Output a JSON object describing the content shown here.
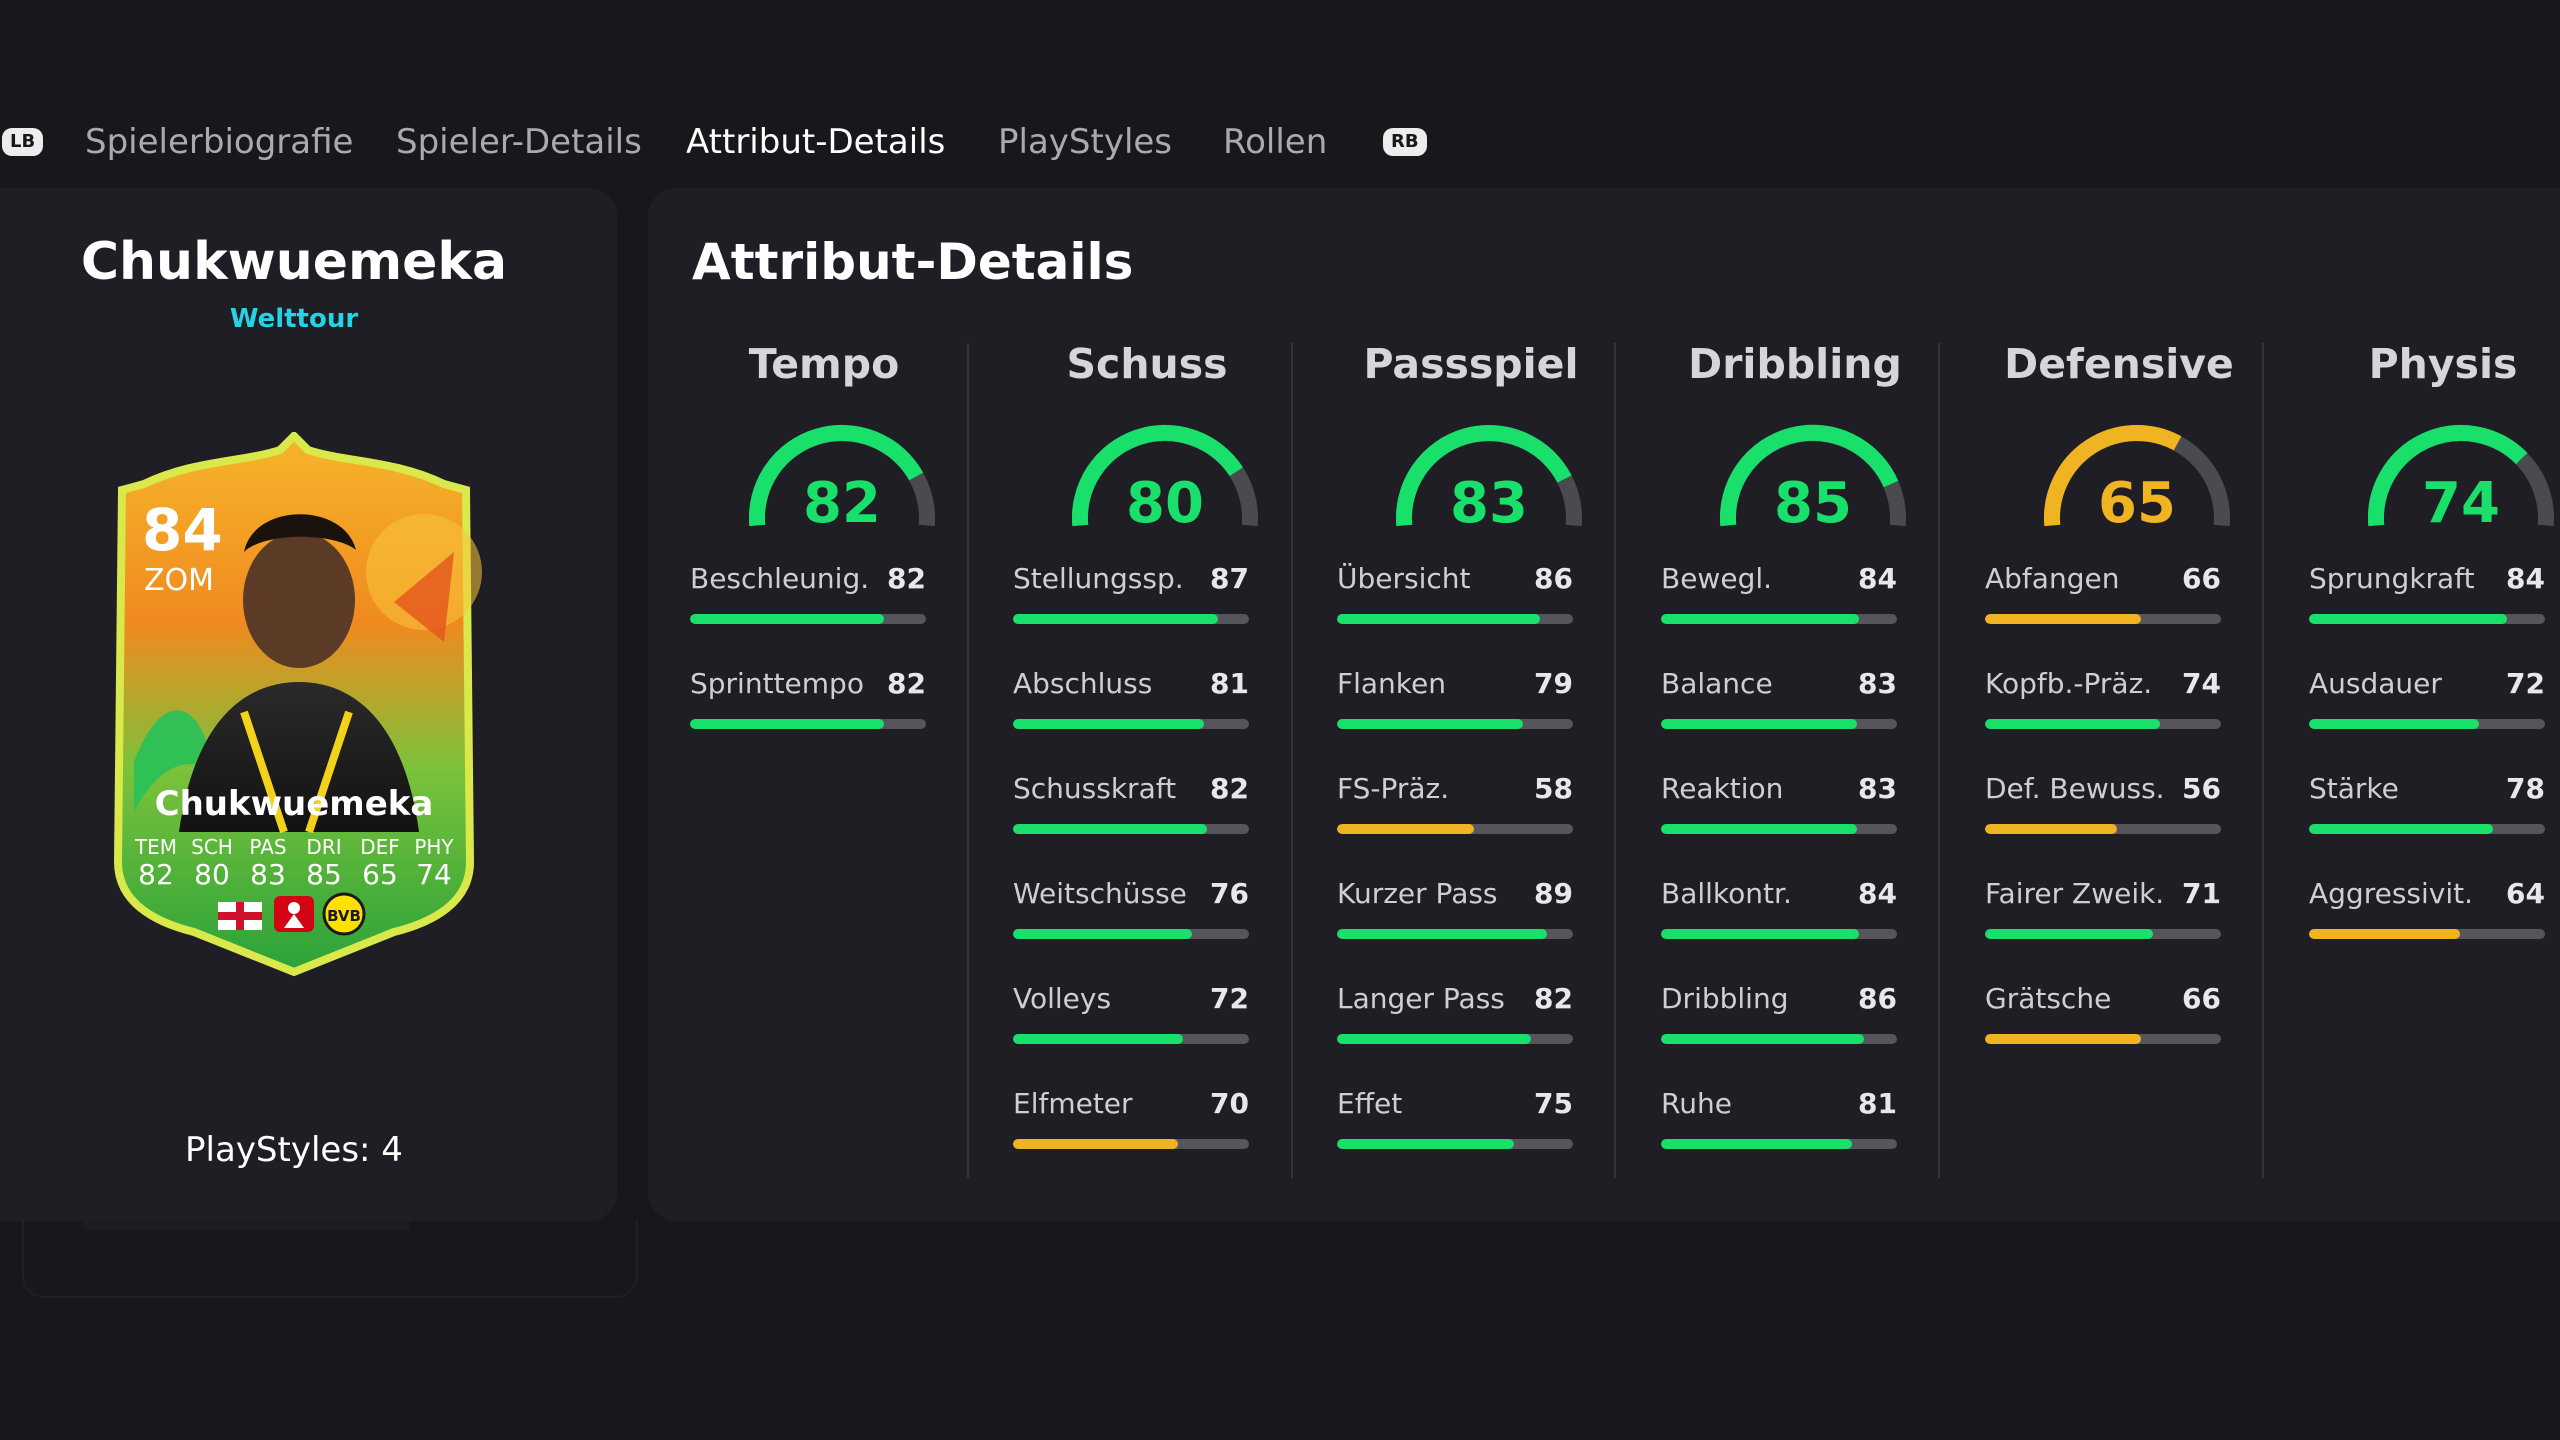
{
  "tabs": {
    "lb": "LB",
    "rb": "RB",
    "items": [
      "Spielerbiografie",
      "Spieler-Details",
      "Attribut-Details",
      "PlayStyles",
      "Rollen"
    ],
    "active": "Attribut-Details"
  },
  "player": {
    "name": "Chukwuemeka",
    "version": "Welttour",
    "playstyles_label": "PlayStyles: 4"
  },
  "card": {
    "rating": "84",
    "position": "ZOM",
    "name": "Chukwuemeka",
    "stat_labels": [
      "TEM",
      "SCH",
      "PAS",
      "DRI",
      "DEF",
      "PHY"
    ],
    "stat_values": [
      "82",
      "80",
      "83",
      "85",
      "65",
      "74"
    ],
    "crest": "BVB",
    "colors": {
      "border": "#d9e84a",
      "bg_top": "#f4a11e",
      "bg_bottom": "#2fae3c"
    }
  },
  "section_title": "Attribut-Details",
  "colors": {
    "green": "#19e06a",
    "yellow": "#f0b322",
    "track": "#55555b"
  },
  "categories": [
    {
      "name": "Tempo",
      "value": "82",
      "color": "green",
      "stats": [
        {
          "label": "Beschleunig.",
          "value": "82",
          "color": "green"
        },
        {
          "label": "Sprinttempo",
          "value": "82",
          "color": "green"
        }
      ]
    },
    {
      "name": "Schuss",
      "value": "80",
      "color": "green",
      "stats": [
        {
          "label": "Stellungssp.",
          "value": "87",
          "color": "green"
        },
        {
          "label": "Abschluss",
          "value": "81",
          "color": "green"
        },
        {
          "label": "Schusskraft",
          "value": "82",
          "color": "green"
        },
        {
          "label": "Weitschüsse",
          "value": "76",
          "color": "green"
        },
        {
          "label": "Volleys",
          "value": "72",
          "color": "green"
        },
        {
          "label": "Elfmeter",
          "value": "70",
          "color": "yellow"
        }
      ]
    },
    {
      "name": "Passspiel",
      "value": "83",
      "color": "green",
      "stats": [
        {
          "label": "Übersicht",
          "value": "86",
          "color": "green"
        },
        {
          "label": "Flanken",
          "value": "79",
          "color": "green"
        },
        {
          "label": "FS-Präz.",
          "value": "58",
          "color": "yellow"
        },
        {
          "label": "Kurzer Pass",
          "value": "89",
          "color": "green"
        },
        {
          "label": "Langer Pass",
          "value": "82",
          "color": "green"
        },
        {
          "label": "Effet",
          "value": "75",
          "color": "green"
        }
      ]
    },
    {
      "name": "Dribbling",
      "value": "85",
      "color": "green",
      "stats": [
        {
          "label": "Bewegl.",
          "value": "84",
          "color": "green"
        },
        {
          "label": "Balance",
          "value": "83",
          "color": "green"
        },
        {
          "label": "Reaktion",
          "value": "83",
          "color": "green"
        },
        {
          "label": "Ballkontr.",
          "value": "84",
          "color": "green"
        },
        {
          "label": "Dribbling",
          "value": "86",
          "color": "green"
        },
        {
          "label": "Ruhe",
          "value": "81",
          "color": "green"
        }
      ]
    },
    {
      "name": "Defensive",
      "value": "65",
      "color": "yellow",
      "stats": [
        {
          "label": "Abfangen",
          "value": "66",
          "color": "yellow"
        },
        {
          "label": "Kopfb.-Präz.",
          "value": "74",
          "color": "green"
        },
        {
          "label": "Def. Bewuss.",
          "value": "56",
          "color": "yellow"
        },
        {
          "label": "Fairer Zweik.",
          "value": "71",
          "color": "green"
        },
        {
          "label": "Grätsche",
          "value": "66",
          "color": "yellow"
        }
      ]
    },
    {
      "name": "Physis",
      "value": "74",
      "color": "green",
      "stats": [
        {
          "label": "Sprungkraft",
          "value": "84",
          "color": "green"
        },
        {
          "label": "Ausdauer",
          "value": "72",
          "color": "green"
        },
        {
          "label": "Stärke",
          "value": "78",
          "color": "green"
        },
        {
          "label": "Aggressivit.",
          "value": "64",
          "color": "yellow"
        }
      ]
    }
  ]
}
